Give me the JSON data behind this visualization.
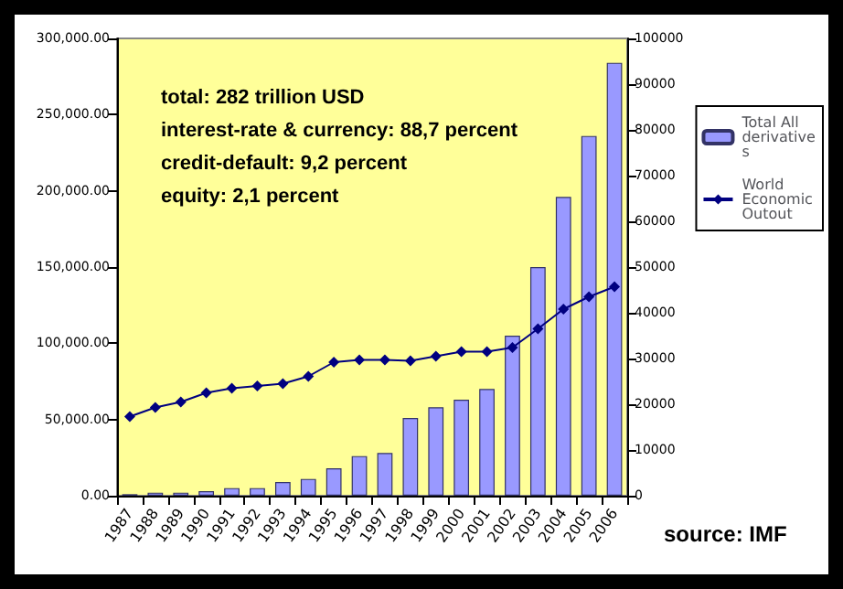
{
  "chart_data": {
    "type": "bar",
    "categories": [
      "1987",
      "1988",
      "1989",
      "1990",
      "1991",
      "1992",
      "1993",
      "1994",
      "1995",
      "1996",
      "1997",
      "1998",
      "1999",
      "2000",
      "2001",
      "2002",
      "2003",
      "2004",
      "2005",
      "2006"
    ],
    "series": [
      {
        "name": "Total All derivatives",
        "color": "#9999ff",
        "values": [
          1000,
          2000,
          2000,
          3000,
          5000,
          5000,
          9000,
          11000,
          18000,
          26000,
          28000,
          51000,
          58000,
          63000,
          70000,
          105000,
          150000,
          196000,
          236000,
          284000
        ]
      },
      {
        "name": "World Economic Outout",
        "type": "line",
        "axis": "y2",
        "color": "#000080",
        "marker": "diamond",
        "values": [
          17300,
          19300,
          20500,
          22500,
          23500,
          24000,
          24500,
          26100,
          29200,
          29700,
          29700,
          29500,
          30500,
          31500,
          31500,
          32400,
          36500,
          40800,
          43500,
          45700
        ]
      }
    ],
    "ylim": [
      0,
      300000
    ],
    "yticks": [
      {
        "value": 0,
        "label": "0.00"
      },
      {
        "value": 50000,
        "label": "50,000.00"
      },
      {
        "value": 100000,
        "label": "100,000.00"
      },
      {
        "value": 150000,
        "label": "150,000.00"
      },
      {
        "value": 200000,
        "label": "200,000.00"
      },
      {
        "value": 250000,
        "label": "250,000.00"
      },
      {
        "value": 300000,
        "label": "300,000.00"
      }
    ],
    "y2lim": [
      0,
      100000
    ],
    "y2ticks": [
      0,
      10000,
      20000,
      30000,
      40000,
      50000,
      60000,
      70000,
      80000,
      90000,
      100000
    ],
    "annotations": [
      "total: 282 trillion USD",
      "interest-rate & currency: 88,7 percent",
      "credit-default: 9,2 percent",
      "equity: 2,1 percent",
      "source: IMF"
    ],
    "legend": "right",
    "grid": false
  }
}
